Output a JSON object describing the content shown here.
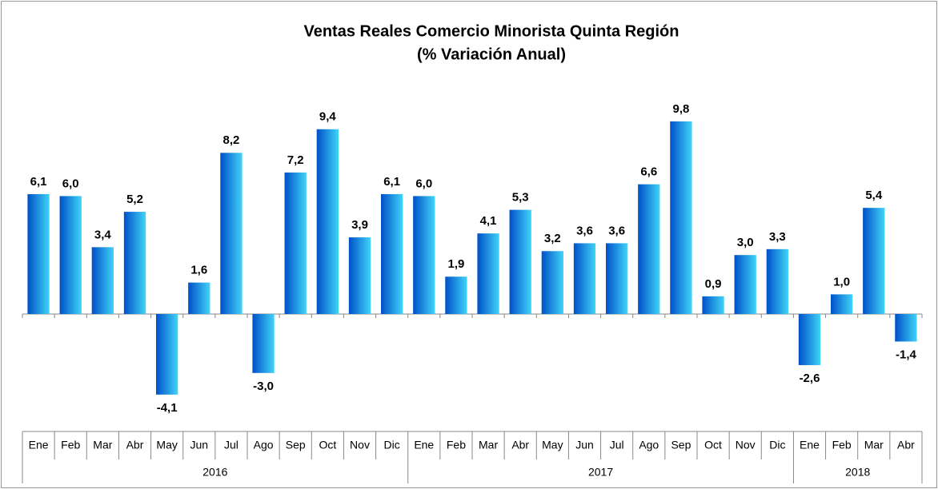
{
  "chart_data": {
    "type": "bar",
    "title": [
      "Ventas Reales Comercio Minorista Quinta Región",
      "(% Variación Anual)"
    ],
    "categories": [
      "Ene",
      "Feb",
      "Mar",
      "Abr",
      "May",
      "Jun",
      "Jul",
      "Ago",
      "Sep",
      "Oct",
      "Nov",
      "Dic",
      "Ene",
      "Feb",
      "Mar",
      "Abr",
      "May",
      "Jun",
      "Jul",
      "Ago",
      "Sep",
      "Oct",
      "Nov",
      "Dic",
      "Ene",
      "Feb",
      "Mar",
      "Abr"
    ],
    "groups": [
      {
        "label": "2016",
        "size": 12
      },
      {
        "label": "2017",
        "size": 12
      },
      {
        "label": "2018",
        "size": 4
      }
    ],
    "values": [
      6.1,
      6.0,
      3.4,
      5.2,
      -4.1,
      1.6,
      8.2,
      -3.0,
      7.2,
      9.4,
      3.9,
      6.1,
      6.0,
      1.9,
      4.1,
      5.3,
      3.2,
      3.6,
      3.6,
      6.6,
      9.8,
      0.9,
      3.0,
      3.3,
      -2.6,
      1.0,
      5.4,
      -1.4
    ],
    "value_labels": [
      "6,1",
      "6,0",
      "3,4",
      "5,2",
      "-4,1",
      "1,6",
      "8,2",
      "-3,0",
      "7,2",
      "9,4",
      "3,9",
      "6,1",
      "6,0",
      "1,9",
      "4,1",
      "5,3",
      "3,2",
      "3,6",
      "3,6",
      "6,6",
      "9,8",
      "0,9",
      "3,0",
      "3,3",
      "-2,6",
      "1,0",
      "5,4",
      "-1,4"
    ],
    "color": [
      "#0050c8",
      "#40d4f8"
    ],
    "ylim": [
      -5,
      11
    ]
  }
}
